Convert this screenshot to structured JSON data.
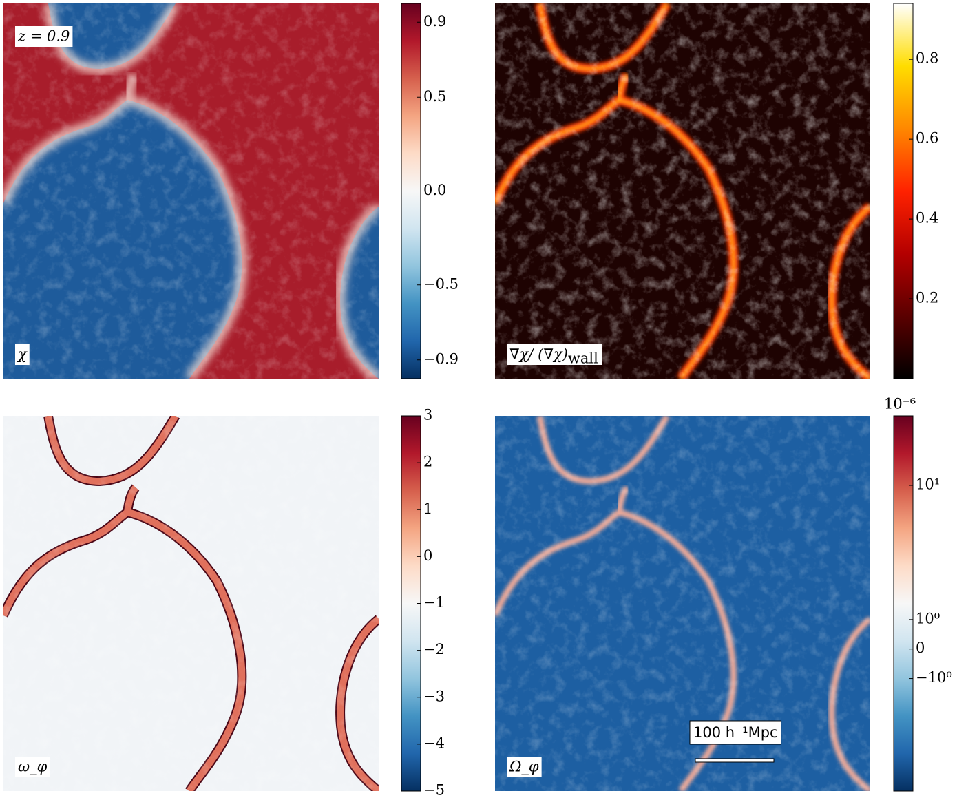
{
  "chart_data": [
    {
      "type": "image",
      "label": "χ",
      "annotation": "z = 0.9",
      "background": "#a81d2b",
      "blob": "#1e5b9b",
      "wall": "#f4ddd3",
      "cmap": [
        "#053061",
        "#2166ac",
        "#4393c3",
        "#92c5de",
        "#d1e5f0",
        "#f7f7f7",
        "#fddbc7",
        "#f4a582",
        "#d6604d",
        "#b2182b",
        "#67001f"
      ],
      "clim": [
        -1,
        1
      ],
      "cticks": [
        {
          "value": 0.9,
          "label": "0.9"
        },
        {
          "value": 0.5,
          "label": "0.5"
        },
        {
          "value": 0,
          "label": "0.0"
        },
        {
          "value": -0.5,
          "label": "−0.5"
        },
        {
          "value": -0.9,
          "label": "−0.9"
        }
      ]
    },
    {
      "type": "image",
      "label": "∇χ/ (∇χ)",
      "label_subscript": "wall",
      "background": "#1e0302",
      "wall": "#ff3b08",
      "wall_core": "#ffc21a",
      "cmap": [
        "#000000",
        "#5a0000",
        "#b40000",
        "#ff2200",
        "#ff8800",
        "#ffdd00",
        "#ffffff"
      ],
      "clim": [
        0,
        0.94
      ],
      "cticks": [
        0.8,
        0.6,
        0.4,
        0.2
      ]
    },
    {
      "type": "image",
      "label": "ω_φ",
      "background": "#f1f4f7",
      "wall": "#e0705c",
      "wall_edge": "#4a0616",
      "cmap": [
        "#053061",
        "#2166ac",
        "#4393c3",
        "#92c5de",
        "#d1e5f0",
        "#f7f7f7",
        "#fddbc7",
        "#f4a582",
        "#d6604d",
        "#b2182b",
        "#67001f"
      ],
      "clim": [
        -5,
        3
      ],
      "cticks": [
        3,
        2,
        1,
        0,
        {
          "value": -1,
          "label": "−1"
        },
        {
          "value": -2,
          "label": "−2"
        },
        {
          "value": -3,
          "label": "−3"
        },
        {
          "value": -4,
          "label": "−4"
        },
        {
          "value": -5,
          "label": "−5"
        }
      ]
    },
    {
      "type": "image",
      "label": "Ω_φ",
      "scale_bar": "100 h⁻¹Mpc",
      "background": "#1d5fa2",
      "wall": "#f1aa98",
      "cmap": [
        "#053061",
        "#2166ac",
        "#4393c3",
        "#92c5de",
        "#d1e5f0",
        "#f7f7f7",
        "#fddbc7",
        "#f4a582",
        "#d6604d",
        "#b2182b",
        "#67001f"
      ],
      "scale": "symlog",
      "linthresh": 1,
      "linscale": 0.22,
      "offset_label": "10⁻⁶",
      "clim": [
        -6.9,
        33
      ],
      "cticks": [
        {
          "value": 10,
          "label": "10¹"
        },
        {
          "value": 1,
          "label": "10⁰"
        },
        0,
        {
          "value": -1,
          "label": "−10⁰"
        }
      ]
    }
  ]
}
